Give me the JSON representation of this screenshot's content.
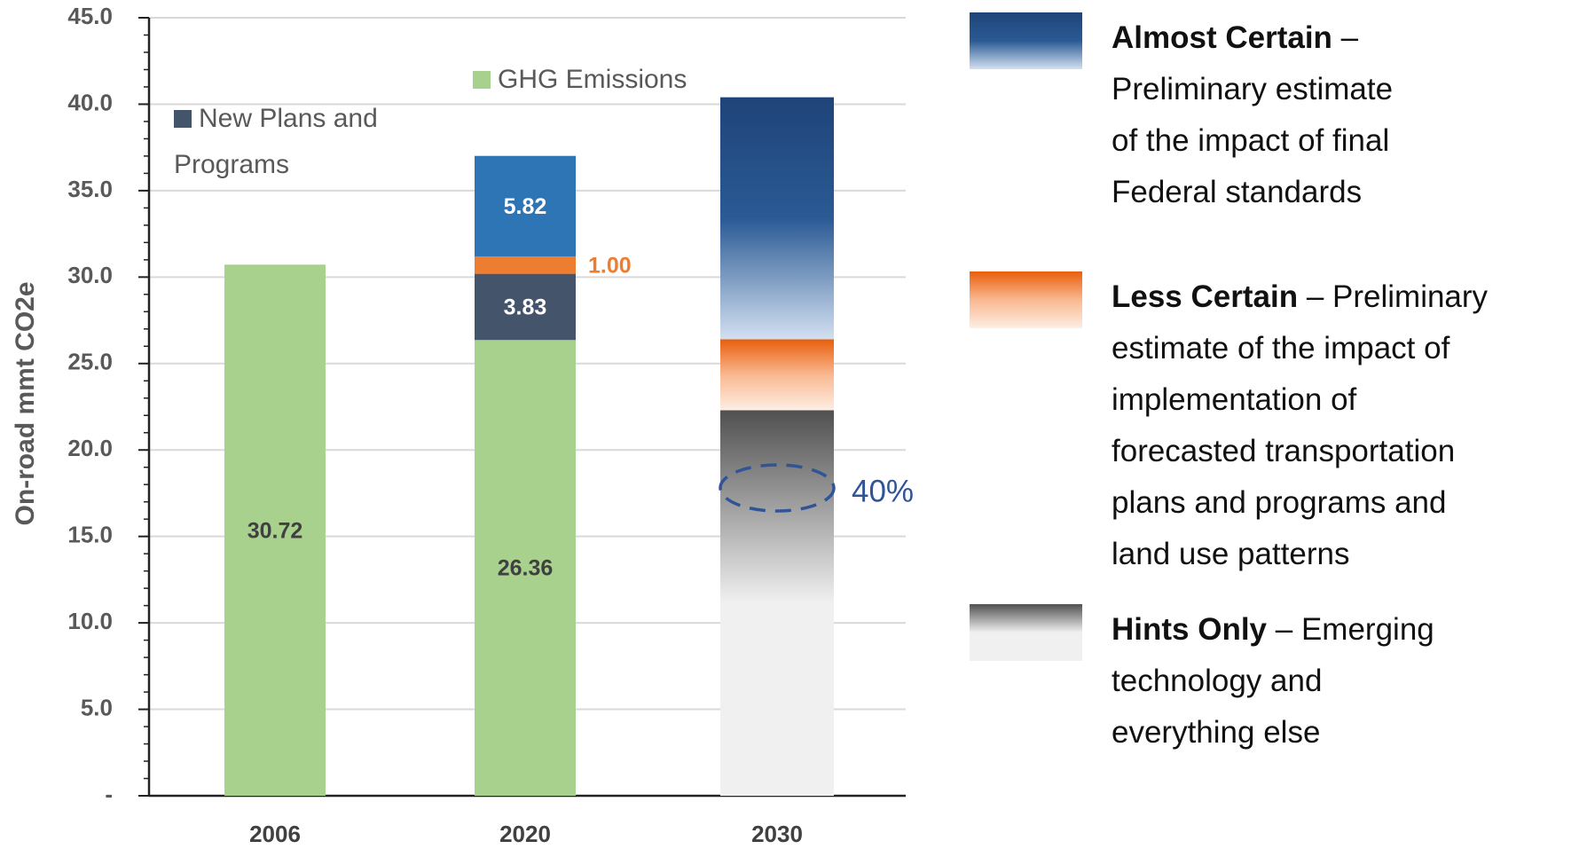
{
  "chart_data": {
    "type": "stacked_bar",
    "y_label": "On-road mmt CO2e",
    "categories": [
      "2006",
      "2020",
      "2030"
    ],
    "ylim": [
      0,
      45
    ],
    "yticks": [
      {
        "value": 0,
        "label": "-"
      },
      {
        "value": 5,
        "label": "5.0"
      },
      {
        "value": 10,
        "label": "10.0"
      },
      {
        "value": 15,
        "label": "15.0"
      },
      {
        "value": 20,
        "label": "20.0"
      },
      {
        "value": 25,
        "label": "25.0"
      },
      {
        "value": 30,
        "label": "30.0"
      },
      {
        "value": 35,
        "label": "35.0"
      },
      {
        "value": 40,
        "label": "40.0"
      },
      {
        "value": 45,
        "label": "45.0"
      }
    ],
    "minor_tick_step": 1,
    "grid": true,
    "series": [
      {
        "name": "GHG Emissions",
        "color": "#a9d18e",
        "values": [
          30.72,
          26.36,
          null
        ],
        "data_labels": true,
        "label_color": "#404040",
        "legend": "top"
      },
      {
        "name": "New Plans and Programs",
        "color": "#44546a",
        "values": [
          null,
          3.83,
          null
        ],
        "data_labels": true,
        "label_color": "#ffffff",
        "legend": "top"
      },
      {
        "color": "#ed7d31",
        "values": [
          null,
          1.0,
          null
        ],
        "value_labels": [
          null,
          "1.00",
          null
        ],
        "data_labels": true,
        "label_color": "#ed7d31",
        "label_position": "right"
      },
      {
        "color": "#2e75b6",
        "values": [
          null,
          5.82,
          null
        ],
        "data_labels": true,
        "label_color": "#ffffff"
      },
      {
        "name": "Hints Only",
        "text": [
          "– Emerging",
          "technology and",
          "everything else"
        ],
        "color": "#f0f0f0",
        "gradient": [
          "#505050",
          "#f0f0f0",
          "#f0f0f0"
        ],
        "values": [
          null,
          null,
          22.3
        ],
        "legend": "right"
      },
      {
        "name": "Less Certain",
        "text": [
          "– Preliminary",
          "estimate of the impact of",
          "implementation of",
          "forecasted transportation",
          "plans and programs and",
          "land use patterns"
        ],
        "color": "#f0c8a8",
        "gradient": [
          "#e85f0c",
          "#f9b890",
          "#fdeee4"
        ],
        "values": [
          null,
          null,
          4.1
        ],
        "legend": "right"
      },
      {
        "name": "Almost Certain",
        "text": [
          "–",
          "Preliminary estimate",
          "of the impact of final",
          "Federal standards"
        ],
        "color": "#1f4e79",
        "gradient": [
          "#1f4479",
          "#2a5a94",
          "#d3e0f1"
        ],
        "values": [
          null,
          null,
          14.0
        ],
        "legend": "right"
      }
    ],
    "annotation": "40%"
  }
}
